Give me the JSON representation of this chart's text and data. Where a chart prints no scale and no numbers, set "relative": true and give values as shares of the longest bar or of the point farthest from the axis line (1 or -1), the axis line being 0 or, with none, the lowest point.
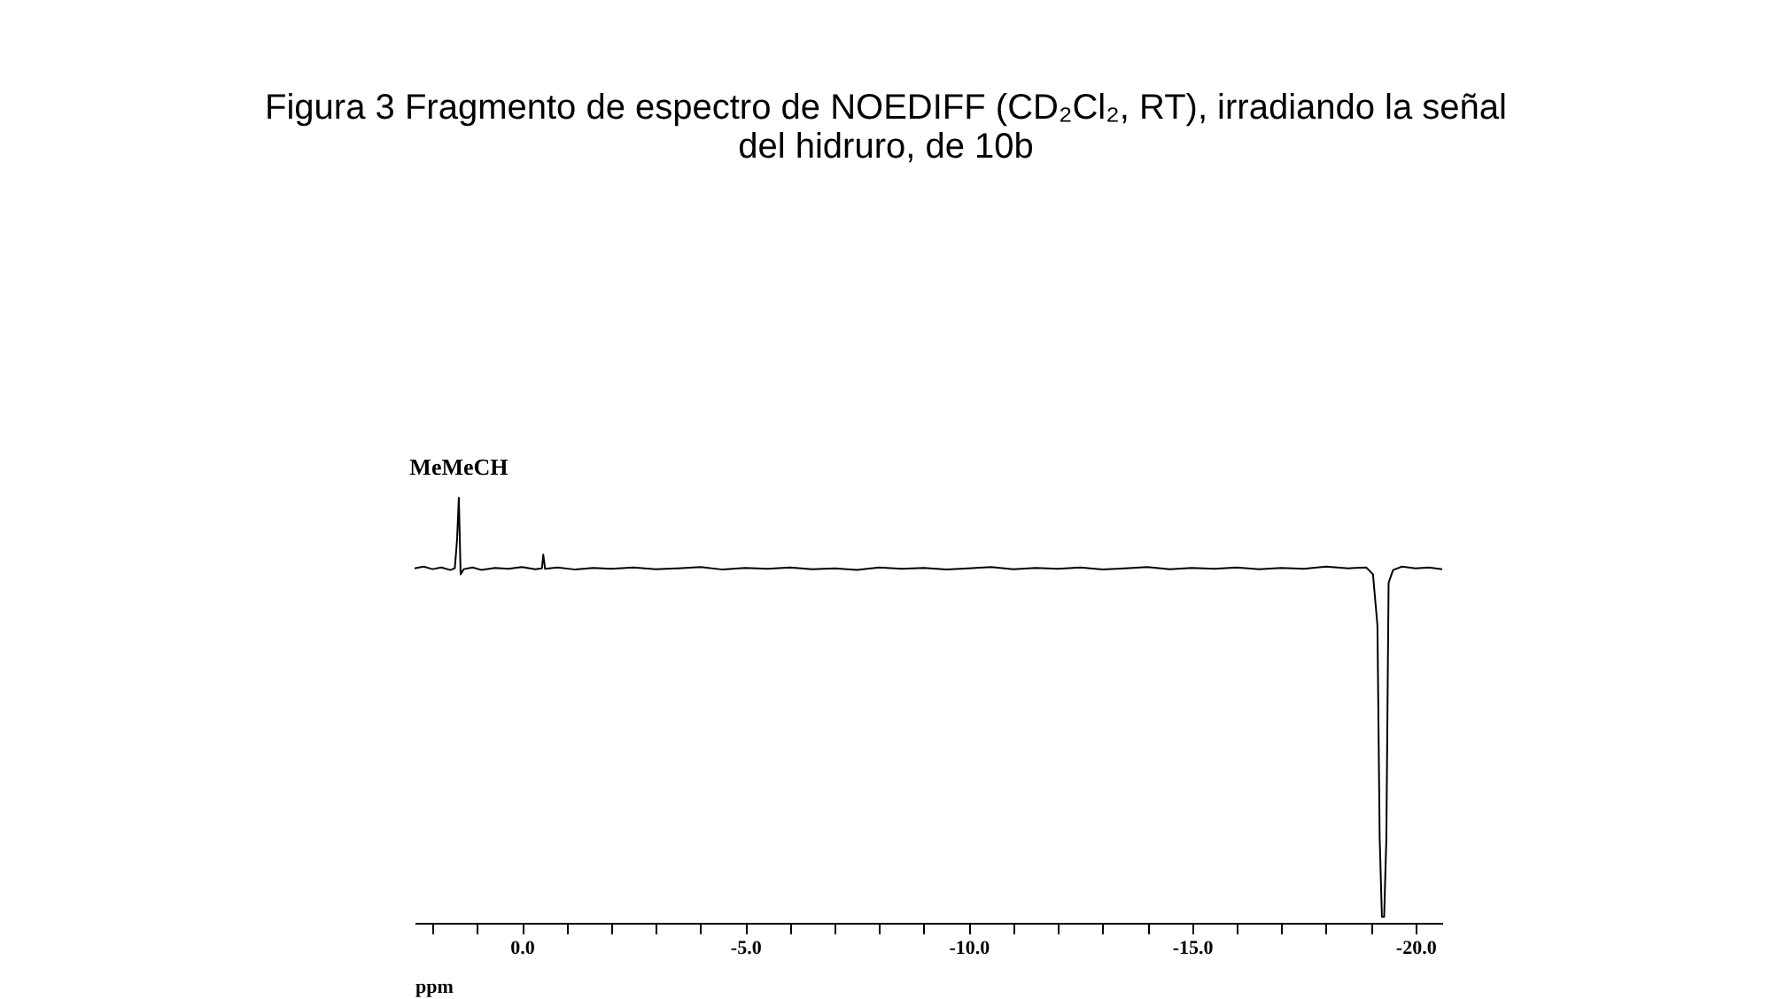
{
  "chart_data": {
    "type": "line",
    "title": "Figura 3 Fragmento de espectro de NOEDIFF (CD₂Cl₂, RT), irradiando la señal del hidruro, de 10b",
    "xlabel": "ppm",
    "relative": true,
    "xlim": [
      2.4,
      -20.6
    ],
    "xticks": [
      {
        "value": 2,
        "label": null
      },
      {
        "value": 1,
        "label": null
      },
      {
        "value": 0,
        "label": "0.0"
      },
      {
        "value": -1,
        "label": null
      },
      {
        "value": -2,
        "label": null
      },
      {
        "value": -3,
        "label": null
      },
      {
        "value": -4,
        "label": null
      },
      {
        "value": -5,
        "label": "-5.0"
      },
      {
        "value": -6,
        "label": null
      },
      {
        "value": -7,
        "label": null
      },
      {
        "value": -8,
        "label": null
      },
      {
        "value": -9,
        "label": null
      },
      {
        "value": -10,
        "label": "-10.0"
      },
      {
        "value": -11,
        "label": null
      },
      {
        "value": -12,
        "label": null
      },
      {
        "value": -13,
        "label": null
      },
      {
        "value": -14,
        "label": null
      },
      {
        "value": -15,
        "label": "-15.0"
      },
      {
        "value": -16,
        "label": null
      },
      {
        "value": -17,
        "label": null
      },
      {
        "value": -18,
        "label": null
      },
      {
        "value": -19,
        "label": null
      },
      {
        "value": -20,
        "label": "-20.0"
      }
    ],
    "annotations": [
      {
        "text": "MeMeCH",
        "x": 1.41,
        "y": 1.0
      }
    ],
    "series": [
      {
        "color": "#000000",
        "x": [
          2.4,
          2.2,
          2.0,
          1.8,
          1.6,
          1.5,
          1.45,
          1.41,
          1.37,
          1.3,
          1.1,
          0.9,
          0.6,
          0.3,
          0.0,
          -0.3,
          -0.45,
          -0.48,
          -0.52,
          -0.8,
          -1.2,
          -1.6,
          -2.0,
          -2.5,
          -3.0,
          -3.5,
          -4.0,
          -4.5,
          -5.0,
          -5.5,
          -6.0,
          -6.5,
          -7.0,
          -7.5,
          -8.0,
          -8.5,
          -9.0,
          -9.5,
          -10.0,
          -10.5,
          -11.0,
          -11.5,
          -12.0,
          -12.5,
          -13.0,
          -13.5,
          -14.0,
          -14.5,
          -15.0,
          -15.5,
          -16.0,
          -16.5,
          -17.0,
          -17.5,
          -18.0,
          -18.5,
          -18.9,
          -19.05,
          -19.15,
          -19.2,
          -19.25,
          -19.3,
          -19.35,
          -19.4,
          -19.5,
          -19.7,
          -20.0,
          -20.3,
          -20.6
        ],
        "values": [
          0.834,
          0.838,
          0.832,
          0.836,
          0.83,
          0.834,
          0.9,
          1.0,
          0.82,
          0.832,
          0.836,
          0.83,
          0.835,
          0.833,
          0.837,
          0.832,
          0.834,
          0.866,
          0.833,
          0.836,
          0.831,
          0.835,
          0.833,
          0.836,
          0.832,
          0.834,
          0.837,
          0.831,
          0.835,
          0.833,
          0.836,
          0.832,
          0.834,
          0.83,
          0.836,
          0.833,
          0.835,
          0.831,
          0.834,
          0.837,
          0.832,
          0.835,
          0.833,
          0.836,
          0.831,
          0.834,
          0.837,
          0.832,
          0.835,
          0.833,
          0.836,
          0.832,
          0.835,
          0.833,
          0.838,
          0.834,
          0.836,
          0.82,
          0.7,
          0.2,
          0.014,
          0.014,
          0.2,
          0.8,
          0.83,
          0.838,
          0.834,
          0.836,
          0.832
        ]
      }
    ]
  }
}
